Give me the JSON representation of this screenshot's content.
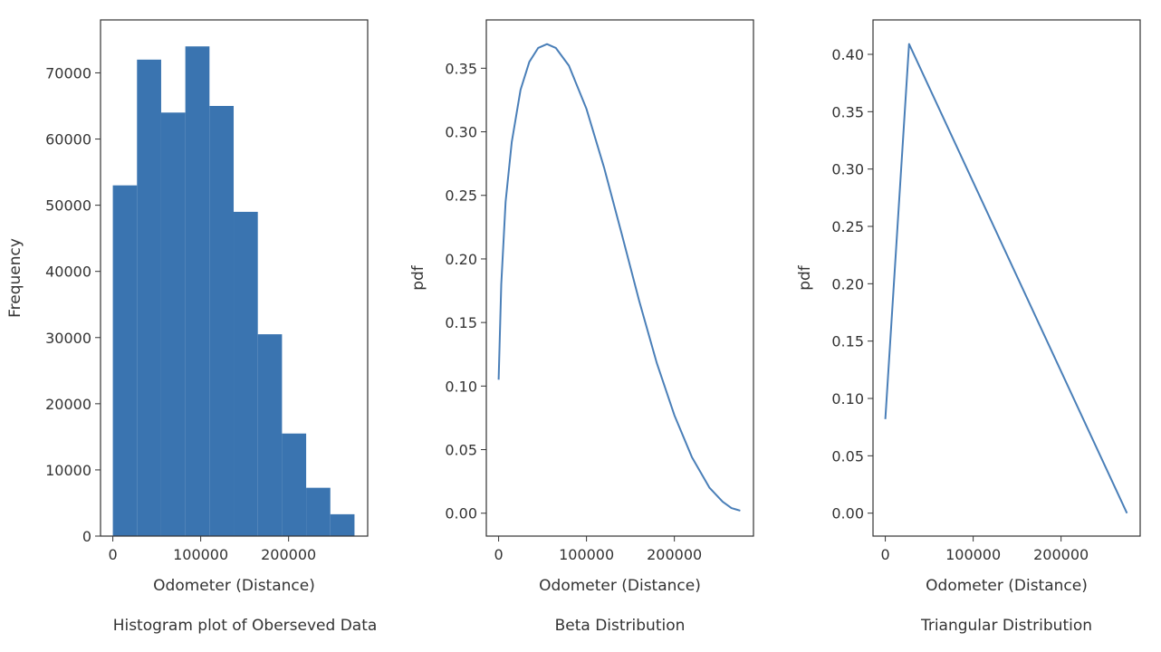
{
  "chart_data": [
    {
      "type": "bar",
      "subtype": "histogram",
      "caption": "Histogram plot of Oberseved Data",
      "xlabel": "Odometer (Distance)",
      "ylabel": "Frequency",
      "xlim": [
        -14000,
        290000
      ],
      "ylim": [
        0,
        78000
      ],
      "xticks": [
        0,
        100000,
        200000
      ],
      "xtick_labels": [
        "0",
        "100000",
        "200000"
      ],
      "yticks": [
        0,
        10000,
        20000,
        30000,
        40000,
        50000,
        60000,
        70000
      ],
      "ytick_labels": [
        "0",
        "10000",
        "20000",
        "30000",
        "40000",
        "50000",
        "60000",
        "70000"
      ],
      "bin_edges": [
        0,
        27500,
        55000,
        82500,
        110000,
        137500,
        165000,
        192500,
        220000,
        247500,
        275000
      ],
      "values": [
        53000,
        72000,
        64000,
        74000,
        65000,
        49000,
        30500,
        15500,
        7300,
        3300
      ],
      "bar_color": "#3a74b0",
      "grid": false
    },
    {
      "type": "line",
      "caption": "Beta Distribution",
      "xlabel": "Odometer (Distance)",
      "ylabel": "pdf",
      "xlim": [
        -14000,
        290000
      ],
      "ylim": [
        -0.018,
        0.388
      ],
      "xticks": [
        0,
        100000,
        200000
      ],
      "xtick_labels": [
        "0",
        "100000",
        "200000"
      ],
      "yticks": [
        0.0,
        0.05,
        0.1,
        0.15,
        0.2,
        0.25,
        0.3,
        0.35
      ],
      "ytick_labels": [
        "0.00",
        "0.05",
        "0.10",
        "0.15",
        "0.20",
        "0.25",
        "0.30",
        "0.35"
      ],
      "x": [
        0,
        3000,
        8000,
        15000,
        25000,
        35000,
        45000,
        55000,
        65000,
        80000,
        100000,
        120000,
        140000,
        160000,
        180000,
        200000,
        220000,
        240000,
        255000,
        265000,
        270000,
        275000
      ],
      "y": [
        0.105,
        0.18,
        0.245,
        0.292,
        0.333,
        0.355,
        0.366,
        0.369,
        0.366,
        0.352,
        0.318,
        0.272,
        0.22,
        0.167,
        0.118,
        0.077,
        0.044,
        0.02,
        0.009,
        0.004,
        0.003,
        0.002
      ],
      "line_color": "#4a7fb8",
      "grid": false
    },
    {
      "type": "line",
      "caption": "Triangular Distribution",
      "xlabel": "Odometer (Distance)",
      "ylabel": "pdf",
      "xlim": [
        -14000,
        290000
      ],
      "ylim": [
        -0.02,
        0.43
      ],
      "xticks": [
        0,
        100000,
        200000
      ],
      "xtick_labels": [
        "0",
        "100000",
        "200000"
      ],
      "yticks": [
        0.0,
        0.05,
        0.1,
        0.15,
        0.2,
        0.25,
        0.3,
        0.35,
        0.4
      ],
      "ytick_labels": [
        "0.00",
        "0.05",
        "0.10",
        "0.15",
        "0.20",
        "0.25",
        "0.30",
        "0.35",
        "0.40"
      ],
      "x": [
        0,
        27000,
        275000
      ],
      "y": [
        0.082,
        0.409,
        0.0
      ],
      "line_color": "#4a7fb8",
      "grid": false
    }
  ]
}
